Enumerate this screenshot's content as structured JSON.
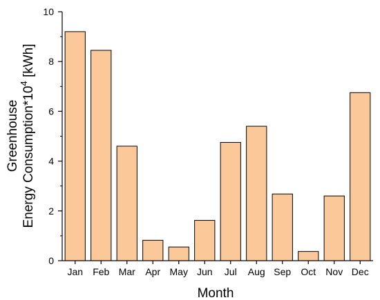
{
  "chart_data": {
    "type": "bar",
    "title": "",
    "xlabel": "Month",
    "ylabel_line1": "Greenhouse",
    "ylabel_line2_prefix": "Energy Consumption*10",
    "ylabel_line2_exponent": "4",
    "ylabel_line2_suffix": " [kWh]",
    "categories": [
      "Jan",
      "Feb",
      "Mar",
      "Apr",
      "May",
      "Jun",
      "Jul",
      "Aug",
      "Sep",
      "Oct",
      "Nov",
      "Dec"
    ],
    "values": [
      9.2,
      8.45,
      4.6,
      0.82,
      0.55,
      1.62,
      4.75,
      5.4,
      2.68,
      0.37,
      2.6,
      6.75
    ],
    "ylim": [
      0,
      10
    ],
    "yticks": [
      0,
      2,
      4,
      6,
      8,
      10
    ],
    "bar_color": "#fbc999",
    "bar_edge_color": "#000000",
    "grid": false,
    "legend": "none"
  }
}
